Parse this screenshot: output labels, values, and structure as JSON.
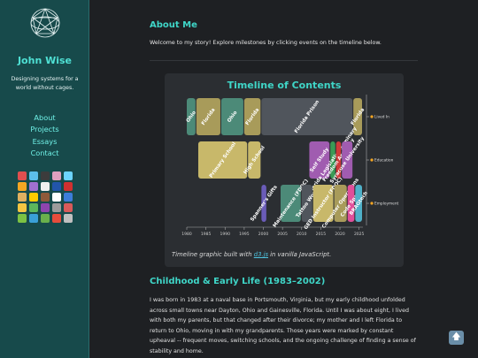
{
  "sidebar": {
    "name": "John Wise",
    "tagline": "Designing systems for a world without cages.",
    "nav": [
      "About",
      "Projects",
      "Essays",
      "Contact"
    ],
    "emoji_colors": [
      "#e04f4f",
      "#5bc0eb",
      "#3c3c3c",
      "#e0a0c0",
      "#6cd4ff",
      "#f5a623",
      "#a070d0",
      "#f0f0f0",
      "#2255aa",
      "#d03030",
      "#e0b060",
      "#ffcc00",
      "#8e5a3a",
      "#ffffff",
      "#3c7dd9",
      "#f5c542",
      "#5cb85c",
      "#8e44ad",
      "#9b9b9b",
      "#d85a5a",
      "#7cc243",
      "#3aa0d8",
      "#6ab04c",
      "#e74c3c",
      "#c0c0c0"
    ]
  },
  "about": {
    "heading": "About Me",
    "intro": "Welcome to my story! Explore milestones by clicking events on the timeline below."
  },
  "timeline": {
    "caption_prefix": "Timeline graphic built with ",
    "caption_link": "d3.js",
    "caption_suffix": " in vanilla JavaScript."
  },
  "chart_data": {
    "type": "timeline",
    "title": "Timeline of Contents",
    "x_ticks": [
      "1980",
      "1985",
      "1990",
      "1995",
      "2000",
      "2005",
      "2010",
      "2015",
      "2020",
      "2025"
    ],
    "xlim": [
      1980,
      2026
    ],
    "lanes": [
      "Lived In",
      "Education",
      "Employment"
    ],
    "bars": [
      {
        "lane": "Lived In",
        "label": "Ohio",
        "start": 1980,
        "end": 1982.5,
        "color": "#4c8a78"
      },
      {
        "lane": "Lived In",
        "label": "Florida",
        "start": 1982.5,
        "end": 1989,
        "color": "#a89b5a"
      },
      {
        "lane": "Lived In",
        "label": "Ohio",
        "start": 1989,
        "end": 1995,
        "color": "#4c8a78"
      },
      {
        "lane": "Lived In",
        "label": "Florida",
        "start": 1995,
        "end": 1999.5,
        "color": "#a89b5a"
      },
      {
        "lane": "Lived In",
        "label": "Florida Prison",
        "start": 1999.5,
        "end": 2023.5,
        "color": "#50555c"
      },
      {
        "lane": "Lived In",
        "label": "Florida",
        "start": 2023.5,
        "end": 2026,
        "color": "#a89b5a"
      },
      {
        "lane": "Education",
        "label": "Primary School",
        "start": 1983,
        "end": 1996,
        "color": "#c8b86a"
      },
      {
        "lane": "Education",
        "label": "High School",
        "start": 1996,
        "end": 1999.5,
        "color": "#c8b86a"
      },
      {
        "lane": "Education",
        "label": "Self Study",
        "start": 2012,
        "end": 2017.5,
        "color": "#a05cb0"
      },
      {
        "lane": "Education",
        "label": "Florida Legislative Seminary",
        "start": 2017.5,
        "end": 2019,
        "color": "#3a9a55"
      },
      {
        "lane": "Education",
        "label": "Freedom Academy",
        "start": 2019,
        "end": 2020.5,
        "color": "#d03a3a"
      },
      {
        "lane": "Education",
        "label": "Syracuse University",
        "start": 2020.5,
        "end": 2023.5,
        "color": "#a05cb0"
      },
      {
        "lane": "Employment",
        "label": "Spanner's Gifts",
        "start": 1999.5,
        "end": 2001,
        "color": "#6a5cb8"
      },
      {
        "lane": "Employment",
        "label": "Maintenance (FDOC)",
        "start": 2004.5,
        "end": 2010,
        "color": "#4c8a78"
      },
      {
        "lane": "Employment",
        "label": "Tattoo Work",
        "start": 2010,
        "end": 2013,
        "color": "#50555c"
      },
      {
        "lane": "Employment",
        "label": "GED Instructor (FDOC)",
        "start": 2013,
        "end": 2018.5,
        "color": "#c8b86a"
      },
      {
        "lane": "Employment",
        "label": "Computer Operations",
        "start": 2018.5,
        "end": 2022,
        "color": "#a89b5a"
      },
      {
        "lane": "Employment",
        "label": "Code Spark",
        "start": 2022,
        "end": 2024,
        "color": "#e04f9a"
      },
      {
        "lane": "Employment",
        "label": "BRAGtech",
        "start": 2024,
        "end": 2026,
        "color": "#4fb0c8"
      }
    ]
  },
  "childhood": {
    "heading": "Childhood & Early Life (1983–2002)",
    "lines": [
      "I was born in 1983 at a naval base in Portsmouth, Virginia, but my early childhood unfolded",
      "across small towns near Dayton, Ohio and Gainesville, Florida. Until I was about eight, I lived",
      "with both my parents, but that changed after their divorce; my mother and I left Florida to",
      "return to Ohio, moving in with my grandparents. Those years were marked by constant",
      "upheaval -- frequent moves, switching schools, and the ongoing challenge of finding a sense of",
      "stability and home."
    ]
  },
  "icons": {
    "logo": "geodesic-sphere-icon",
    "back_to_top": "arrow-up-icon",
    "back_to_top_glyph": "🡅"
  }
}
